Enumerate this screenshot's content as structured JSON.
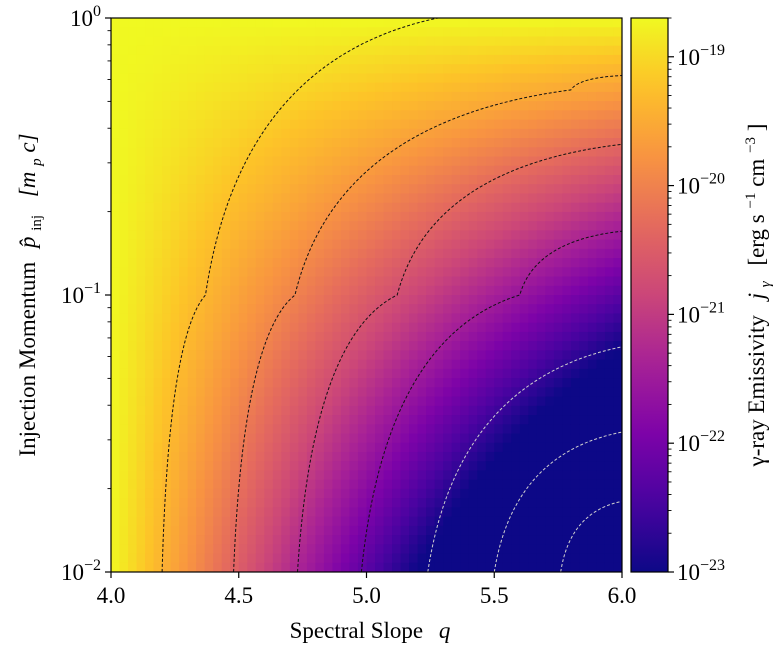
{
  "chart_data": {
    "type": "heatmap",
    "title": "",
    "xlabel": "Spectral Slope",
    "xlabel_symbol": "q",
    "ylabel": "Injection Momentum",
    "ylabel_symbol": "p̂",
    "ylabel_subscript": "inj",
    "ylabel_unit": "[m",
    "ylabel_unit_sub": "p",
    "ylabel_unit_tail": "c]",
    "xlim": [
      4.0,
      6.0
    ],
    "ylim": [
      0.01,
      1.0
    ],
    "yscale": "log",
    "x_ticks": [
      {
        "value": 4.0,
        "label": "4.0"
      },
      {
        "value": 4.5,
        "label": "4.5"
      },
      {
        "value": 5.0,
        "label": "5.0"
      },
      {
        "value": 5.5,
        "label": "5.5"
      },
      {
        "value": 6.0,
        "label": "6.0"
      }
    ],
    "y_ticks": [
      {
        "value": 1.0,
        "base": "10",
        "exp": "0"
      },
      {
        "value": 0.1,
        "base": "10",
        "exp": "−1"
      },
      {
        "value": 0.01,
        "base": "10",
        "exp": "−2"
      }
    ],
    "colorbar": {
      "label": "γ-ray Emissivity",
      "label_symbol": "j",
      "label_symbol_sub": "γ",
      "label_unit": "[erg s",
      "label_unit_exp1": "−1",
      "label_unit_mid": "cm",
      "label_unit_exp2": "−3",
      "label_unit_tail": "]",
      "scale": "log",
      "colormap": "plasma",
      "range": [
        1e-23,
        2e-19
      ],
      "ticks": [
        {
          "value": 1e-19,
          "base": "10",
          "exp": "−19"
        },
        {
          "value": 1e-20,
          "base": "10",
          "exp": "−20"
        },
        {
          "value": 1e-21,
          "base": "10",
          "exp": "−21"
        },
        {
          "value": 1e-22,
          "base": "10",
          "exp": "−22"
        },
        {
          "value": 1e-23,
          "base": "10",
          "exp": "−23"
        }
      ]
    },
    "grid": false,
    "field_model": "log10_j = -18.7 - 1.8*(q-4)*log10(1/p)",
    "contours": [
      {
        "level_log10": -19.2,
        "points": [
          [
            4.2,
            0.01
          ],
          [
            4.37,
            0.1
          ],
          [
            5.28,
            1.0
          ]
        ]
      },
      {
        "level_log10": -19.7,
        "points": [
          [
            4.48,
            0.01
          ],
          [
            4.72,
            0.1
          ],
          [
            5.8,
            0.55
          ],
          [
            6.0,
            0.62
          ]
        ]
      },
      {
        "level_log10": -20.2,
        "points": [
          [
            4.73,
            0.01
          ],
          [
            5.12,
            0.1
          ],
          [
            6.0,
            0.35
          ]
        ]
      },
      {
        "level_log10": -20.7,
        "points": [
          [
            4.98,
            0.01
          ],
          [
            5.6,
            0.1
          ],
          [
            6.0,
            0.17
          ]
        ]
      },
      {
        "level_log10": -21.2,
        "points": [
          [
            5.24,
            0.01
          ],
          [
            6.0,
            0.065
          ]
        ]
      },
      {
        "level_log10": -21.7,
        "points": [
          [
            5.5,
            0.01
          ],
          [
            6.0,
            0.032
          ]
        ]
      },
      {
        "level_log10": -22.2,
        "points": [
          [
            5.76,
            0.01
          ],
          [
            6.0,
            0.018
          ]
        ]
      }
    ]
  }
}
